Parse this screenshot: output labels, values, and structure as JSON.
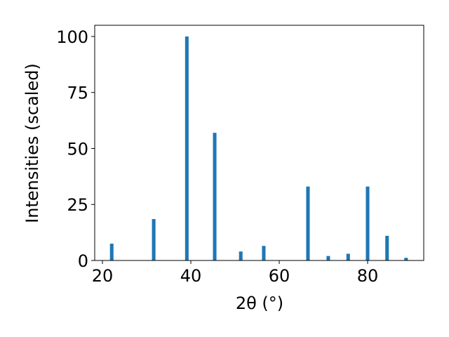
{
  "chart_data": {
    "type": "bar",
    "xlabel": "2θ (°)",
    "ylabel": "Intensities (scaled)",
    "x": [
      22.1,
      31.6,
      39.1,
      45.4,
      51.3,
      56.5,
      66.5,
      71.1,
      75.6,
      80.0,
      84.4,
      88.7
    ],
    "values": [
      7.5,
      18.5,
      100,
      57,
      4,
      6.5,
      33,
      2,
      3,
      33,
      11,
      1.2
    ],
    "bar_width": 0.8,
    "color": "#1f77b4",
    "xlim": [
      18.25,
      92.7
    ],
    "xticks": [
      20,
      40,
      60,
      80
    ],
    "ylim": [
      0,
      105
    ],
    "yticks": [
      0,
      25,
      50,
      75,
      100
    ]
  }
}
